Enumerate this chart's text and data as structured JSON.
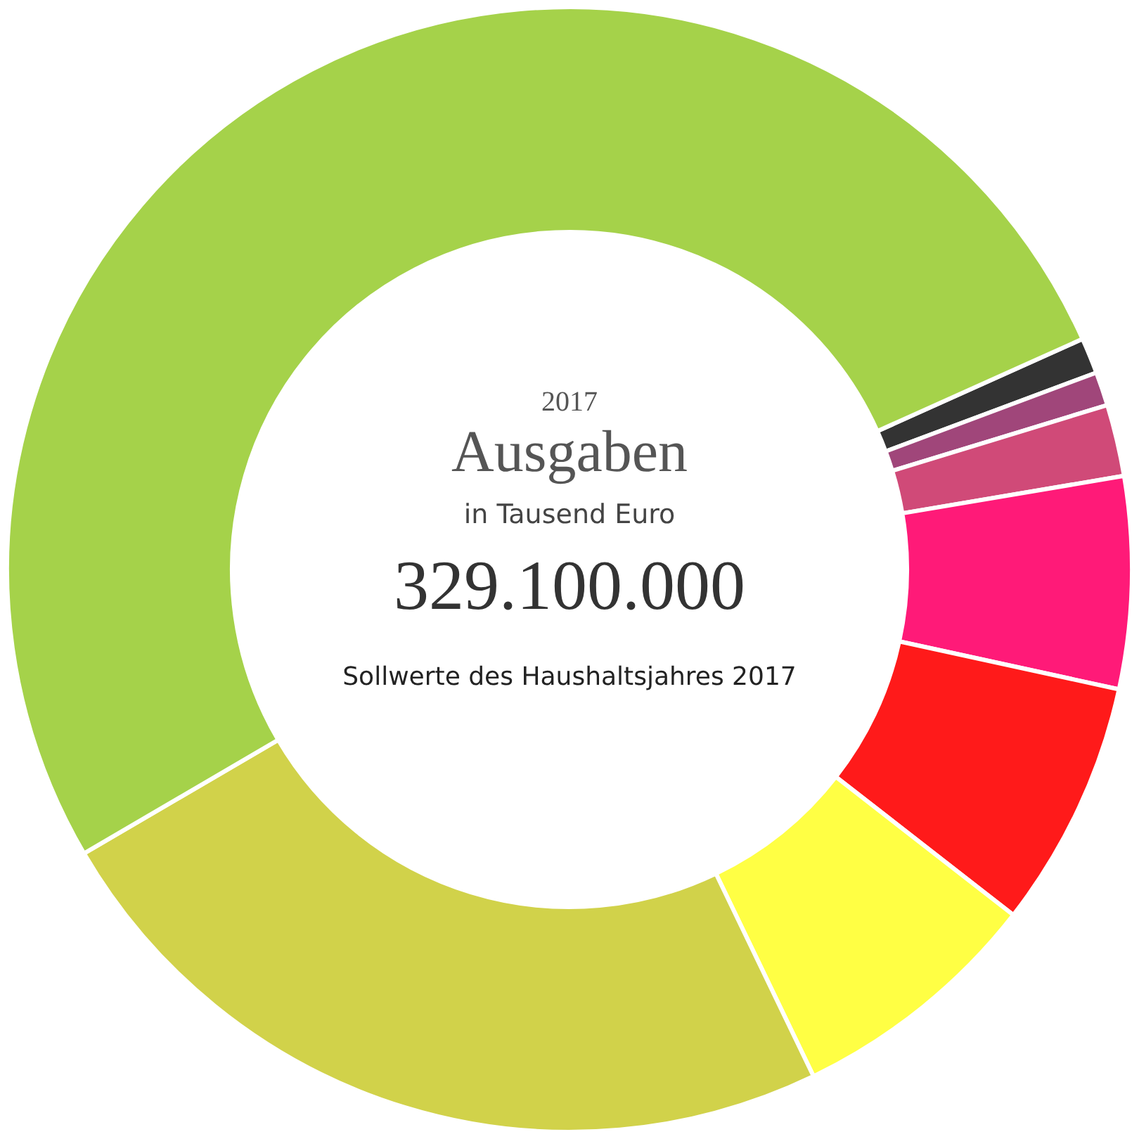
{
  "chart_data": {
    "type": "donut",
    "title": "Ausgaben",
    "subtitle": "in Tausend Euro",
    "annotations": [
      "2017",
      "329.100.000",
      "Sollwerte des Haushaltsjahres 2017"
    ],
    "categories": [
      null,
      null,
      null,
      null,
      null,
      null,
      null,
      null
    ],
    "values": [
      1.03,
      0.97,
      2.06,
      6.08,
      7.11,
      7.33,
      23.72,
      51.7
    ],
    "colors": [
      "#333333",
      "#a0467a",
      "#d04a78",
      "#ff1a78",
      "#ff1a1a",
      "#ffff44",
      "#d1d24a",
      "#a5d24a"
    ]
  }
}
